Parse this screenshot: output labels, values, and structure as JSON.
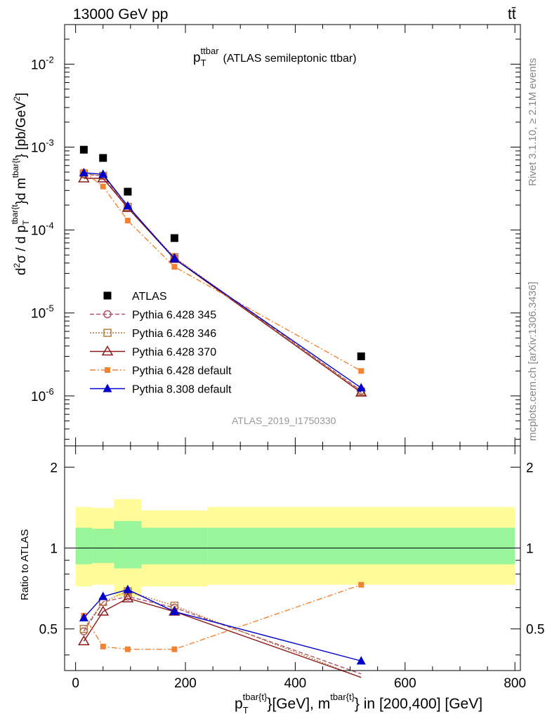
{
  "header": {
    "energy_label": "13000 GeV pp",
    "process_label": "tt̄"
  },
  "side_labels": {
    "rivet": "Rivet 3.1.10, ≥ 2.1M events",
    "mcplots": "mcplots.cern.ch [arXiv:1306.3436]"
  },
  "plot_title": {
    "main": "p",
    "sub": "T",
    "sup": "ttbar",
    "rest": "(ATLAS semileptonic ttbar)"
  },
  "analysis_id": "ATLAS_2019_I1750330",
  "y_label_upper": "d²σ / d p_T^{tbar{t}}d m^{tbar{t}} [pb/GeV²]",
  "y_label_lower": "Ratio to ATLAS",
  "x_label": "p_T^{tbar{t}}[GeV], m^{tbar{t}} in [200,400] [GeV]",
  "x_label_parts": {
    "p": "p",
    "p_sub": "T",
    "p_sup": "tbar{t}",
    "mid": "}[GeV], m",
    "m_sup": "tbar{t}",
    "end": "} in [200,400] [GeV]"
  },
  "upper_yticks": [
    {
      "base": "10",
      "exp": "-2",
      "value": 0.01
    },
    {
      "base": "10",
      "exp": "-3",
      "value": 0.001
    },
    {
      "base": "10",
      "exp": "-4",
      "value": 0.0001
    },
    {
      "base": "10",
      "exp": "-5",
      "value": 1e-05
    },
    {
      "base": "10",
      "exp": "-6",
      "value": 1e-06
    }
  ],
  "lower_yticks": [
    "0.5",
    "1",
    "2"
  ],
  "xticks": [
    "0",
    "200",
    "400",
    "600",
    "800"
  ],
  "colors": {
    "atlas": "#000000",
    "p345": "#b2526b",
    "p346": "#b07d3a",
    "p370": "#8b1a1a",
    "p6def": "#f58231",
    "p8def": "#0000cc",
    "band_inner": "#99f599",
    "band_outer": "#fffb99"
  },
  "chart_data": [
    {
      "type": "scatter",
      "title": "p_T^{ttbar} (ATLAS semileptonic ttbar)",
      "xlabel": "p_T^{tbar{t}}[GeV], m^{tbar{t}} in [200,400] [GeV]",
      "ylabel": "d²σ / d p_T^{tbar{t}}d m^{tbar{t}} [pb/GeV²]",
      "yscale": "log",
      "xlim": [
        -20,
        810
      ],
      "ylim": [
        2.5e-07,
        0.03
      ],
      "x": [
        15,
        50,
        95,
        180,
        520
      ],
      "series": [
        {
          "name": "ATLAS",
          "values": [
            0.00093,
            0.00074,
            0.00029,
            8e-05,
            3e-06
          ],
          "marker": "square",
          "line": "none"
        },
        {
          "name": "Pythia 6.428 345",
          "values": [
            0.00047,
            0.00045,
            0.000185,
            4.6e-05,
            1.16e-06
          ],
          "marker": "open-circle",
          "line": "dashed"
        },
        {
          "name": "Pythia 6.428 346",
          "values": [
            0.00048,
            0.00045,
            0.00019,
            4.7e-05,
            1.13e-06
          ],
          "marker": "open-square",
          "line": "dotted"
        },
        {
          "name": "Pythia 6.428 370",
          "values": [
            0.00042,
            0.00042,
            0.000185,
            4.5e-05,
            1.1e-06
          ],
          "marker": "open-triangle",
          "line": "solid"
        },
        {
          "name": "Pythia 6.428 default",
          "values": [
            0.000505,
            0.000335,
            0.00013,
            3.6e-05,
            2e-06
          ],
          "marker": "filled-square-small",
          "line": "dashdot"
        },
        {
          "name": "Pythia 8.308 default",
          "values": [
            0.00049,
            0.00047,
            0.000195,
            4.5e-05,
            1.25e-06
          ],
          "marker": "filled-triangle",
          "line": "solid"
        }
      ],
      "legend_placement": "lower-left"
    },
    {
      "type": "line",
      "ylabel": "Ratio to ATLAS",
      "ylim": [
        0.35,
        2.4
      ],
      "yscale": "log",
      "xlim": [
        -20,
        810
      ],
      "x": [
        15,
        50,
        95,
        180,
        520
      ],
      "reference_line": 1,
      "bands": [
        {
          "edges": [
            0,
            30,
            70,
            120,
            240,
            800
          ],
          "inner": [
            [
              0.87,
              1.19
            ],
            [
              0.88,
              1.18
            ],
            [
              0.84,
              1.26
            ],
            [
              0.87,
              1.19
            ],
            [
              0.87,
              1.19
            ]
          ],
          "outer": [
            [
              0.72,
              1.42
            ],
            [
              0.73,
              1.41
            ],
            [
              0.66,
              1.52
            ],
            [
              0.72,
              1.38
            ],
            [
              0.73,
              1.42
            ]
          ]
        }
      ],
      "series": [
        {
          "name": "Pythia 6.428 345",
          "values": [
            0.49,
            0.63,
            0.66,
            0.6,
            0.34
          ]
        },
        {
          "name": "Pythia 6.428 346",
          "values": [
            0.5,
            0.63,
            0.69,
            0.61,
            0.33
          ]
        },
        {
          "name": "Pythia 6.428 370",
          "values": [
            0.45,
            0.58,
            0.65,
            0.58,
            0.33
          ]
        },
        {
          "name": "Pythia 6.428 default",
          "values": [
            0.56,
            0.43,
            0.42,
            0.42,
            0.73
          ]
        },
        {
          "name": "Pythia 8.308 default",
          "values": [
            0.55,
            0.66,
            0.7,
            0.58,
            0.38
          ]
        }
      ]
    }
  ]
}
